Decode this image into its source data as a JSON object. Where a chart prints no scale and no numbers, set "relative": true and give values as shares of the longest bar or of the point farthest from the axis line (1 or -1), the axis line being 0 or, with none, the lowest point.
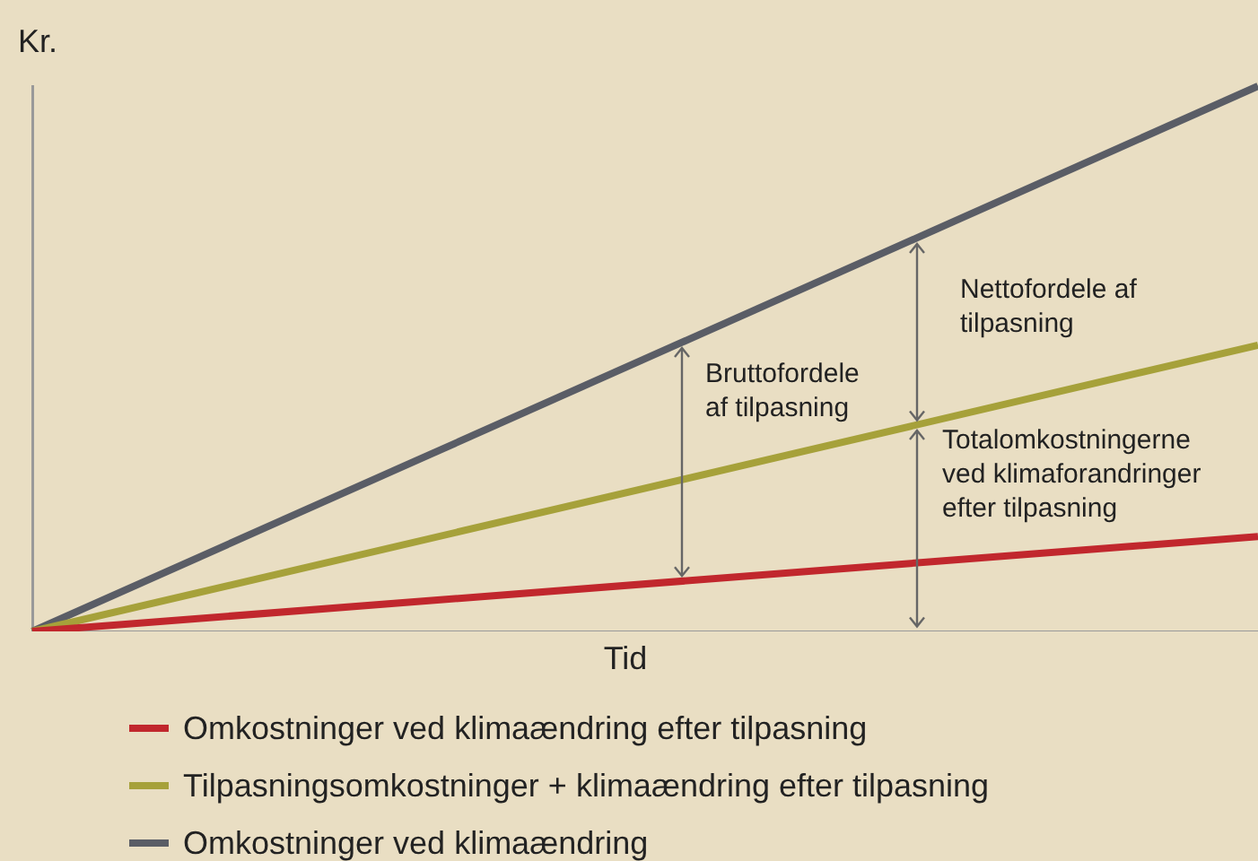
{
  "chart_data": {
    "type": "line",
    "relative": true,
    "xlabel": "Tid",
    "ylabel": "Kr.",
    "categories": [
      null,
      null
    ],
    "series": [
      {
        "name": "Omkostninger ved klimaændring efter tilpasning",
        "color": "#c1272d",
        "values": [
          0,
          0.174
        ]
      },
      {
        "name": "Tilpasningsomkostninger + klimaændring efter tilpasning",
        "color": "#a6a13a",
        "values": [
          0,
          0.525
        ]
      },
      {
        "name": "Omkostninger ved klimaændring",
        "color": "#5a5d66",
        "values": [
          0,
          1
        ]
      }
    ],
    "annotations": [
      "Bruttofordele af tilpasning",
      "Nettofordele af tilpasning",
      "Totalomkostningerne ved klimaforandringer efter tilpasning"
    ],
    "legend": "bottom",
    "grid": false,
    "marker": "none",
    "line_style": "solid"
  }
}
